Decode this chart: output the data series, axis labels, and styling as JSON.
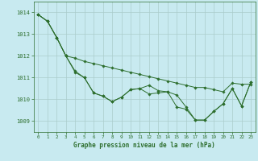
{
  "title": "Graphe pression niveau de la mer (hPa)",
  "bg_color": "#c8eaf0",
  "grid_color": "#aacccc",
  "line_color": "#2d6e2d",
  "marker_color": "#2d6e2d",
  "xlim": [
    -0.5,
    23.5
  ],
  "ylim": [
    1008.5,
    1014.5
  ],
  "yticks": [
    1009,
    1010,
    1011,
    1012,
    1013,
    1014
  ],
  "xticks": [
    0,
    1,
    2,
    3,
    4,
    5,
    6,
    7,
    8,
    9,
    10,
    11,
    12,
    13,
    14,
    15,
    16,
    17,
    18,
    19,
    20,
    21,
    22,
    23
  ],
  "series": [
    [
      1013.9,
      1013.6,
      1012.85,
      1012.0,
      1011.9,
      1011.75,
      1011.65,
      1011.55,
      1011.45,
      1011.35,
      1011.25,
      1011.15,
      1011.05,
      1010.95,
      1010.85,
      1010.75,
      1010.65,
      1010.55,
      1010.55,
      1010.45,
      1010.35,
      1010.75,
      1010.7,
      1010.7
    ],
    [
      1013.9,
      1013.6,
      1012.85,
      1012.0,
      1011.3,
      1011.0,
      1010.3,
      1010.15,
      1009.9,
      1010.1,
      1010.45,
      1010.5,
      1010.65,
      1010.4,
      1010.35,
      1010.2,
      1009.65,
      1009.05,
      1009.05,
      1009.45,
      1009.8,
      1010.5,
      1009.7,
      1010.8
    ],
    [
      1013.9,
      1013.6,
      1012.85,
      1012.0,
      1011.25,
      1011.0,
      1010.3,
      1010.15,
      1009.9,
      1010.1,
      1010.45,
      1010.5,
      1010.25,
      1010.3,
      1010.35,
      1009.65,
      1009.55,
      1009.05,
      1009.05,
      1009.45,
      1009.8,
      1010.5,
      1009.7,
      1010.8
    ]
  ]
}
